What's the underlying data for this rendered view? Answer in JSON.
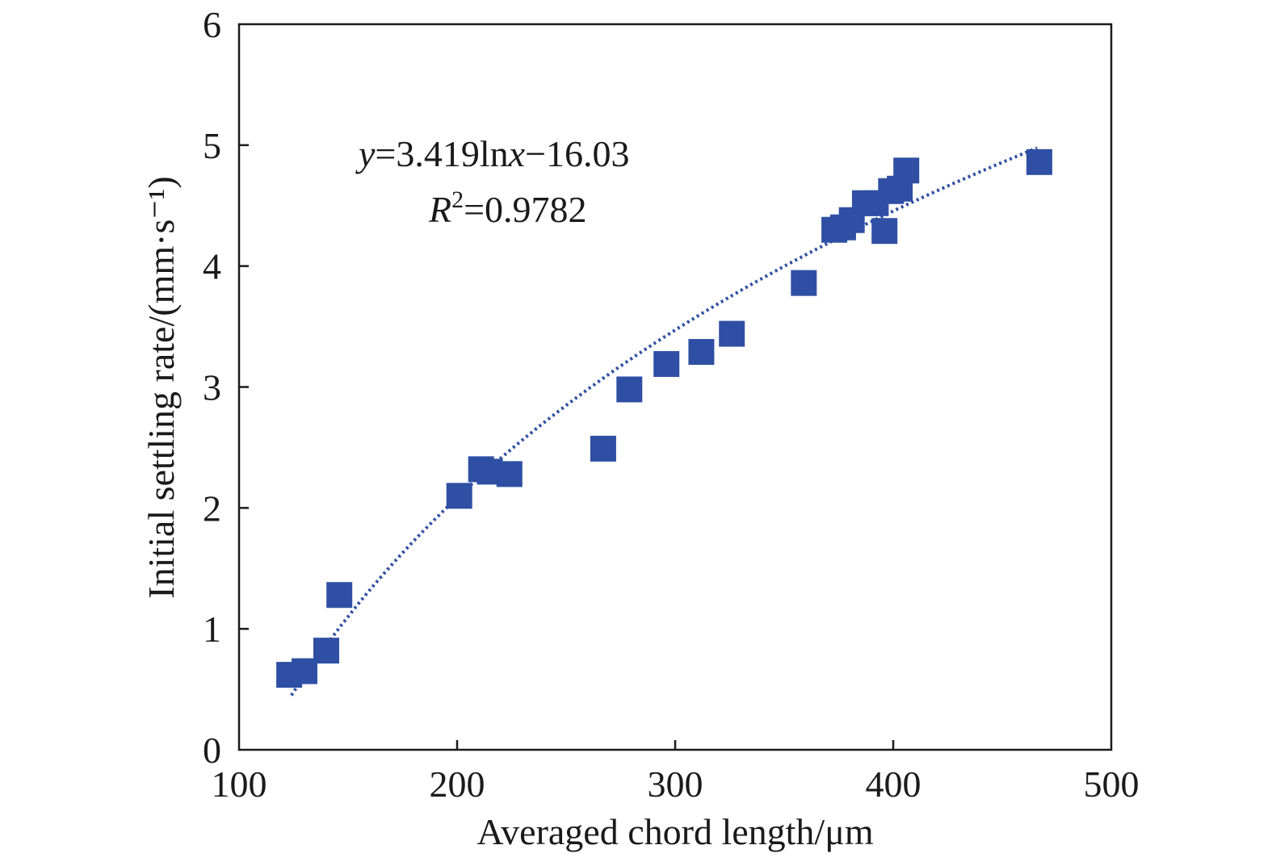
{
  "chart_data": {
    "type": "scatter",
    "xlabel": "Averaged chord length/μm",
    "ylabel": "Initial settling rate/(mm·s⁻¹)",
    "xlim": [
      100,
      500
    ],
    "ylim": [
      0,
      6
    ],
    "xticks": [
      "100",
      "200",
      "300",
      "400",
      "500"
    ],
    "yticks": [
      "0",
      "1",
      "2",
      "3",
      "4",
      "5",
      "6"
    ],
    "grid": false,
    "marker_color": "#2e4fa3",
    "trend_color": "#2e4fa3",
    "series": [
      {
        "points": [
          {
            "x": 123,
            "y": 0.62
          },
          {
            "x": 130,
            "y": 0.65
          },
          {
            "x": 140,
            "y": 0.82
          },
          {
            "x": 146,
            "y": 1.28
          },
          {
            "x": 201,
            "y": 2.1
          },
          {
            "x": 211,
            "y": 2.32
          },
          {
            "x": 215,
            "y": 2.3
          },
          {
            "x": 224,
            "y": 2.28
          },
          {
            "x": 267,
            "y": 2.49
          },
          {
            "x": 279,
            "y": 2.98
          },
          {
            "x": 296,
            "y": 3.19
          },
          {
            "x": 312,
            "y": 3.29
          },
          {
            "x": 326,
            "y": 3.44
          },
          {
            "x": 359,
            "y": 3.86
          },
          {
            "x": 373,
            "y": 4.3
          },
          {
            "x": 377,
            "y": 4.32
          },
          {
            "x": 381,
            "y": 4.38
          },
          {
            "x": 387,
            "y": 4.52
          },
          {
            "x": 392,
            "y": 4.52
          },
          {
            "x": 396,
            "y": 4.29
          },
          {
            "x": 399,
            "y": 4.62
          },
          {
            "x": 403,
            "y": 4.64
          },
          {
            "x": 406,
            "y": 4.79
          },
          {
            "x": 467,
            "y": 4.86
          }
        ]
      }
    ],
    "trendline": {
      "type": "logarithmic",
      "a": 3.419,
      "b": -16.03,
      "x_range": [
        124,
        466
      ],
      "style": "dotted"
    },
    "annotation": {
      "equation": {
        "y_var": "y",
        "eq_part1": "=3.419ln",
        "x_var": "x",
        "eq_part2": "−16.03"
      },
      "r_squared": {
        "var": "R",
        "sup": "2",
        "value": "=0.9782"
      }
    }
  }
}
